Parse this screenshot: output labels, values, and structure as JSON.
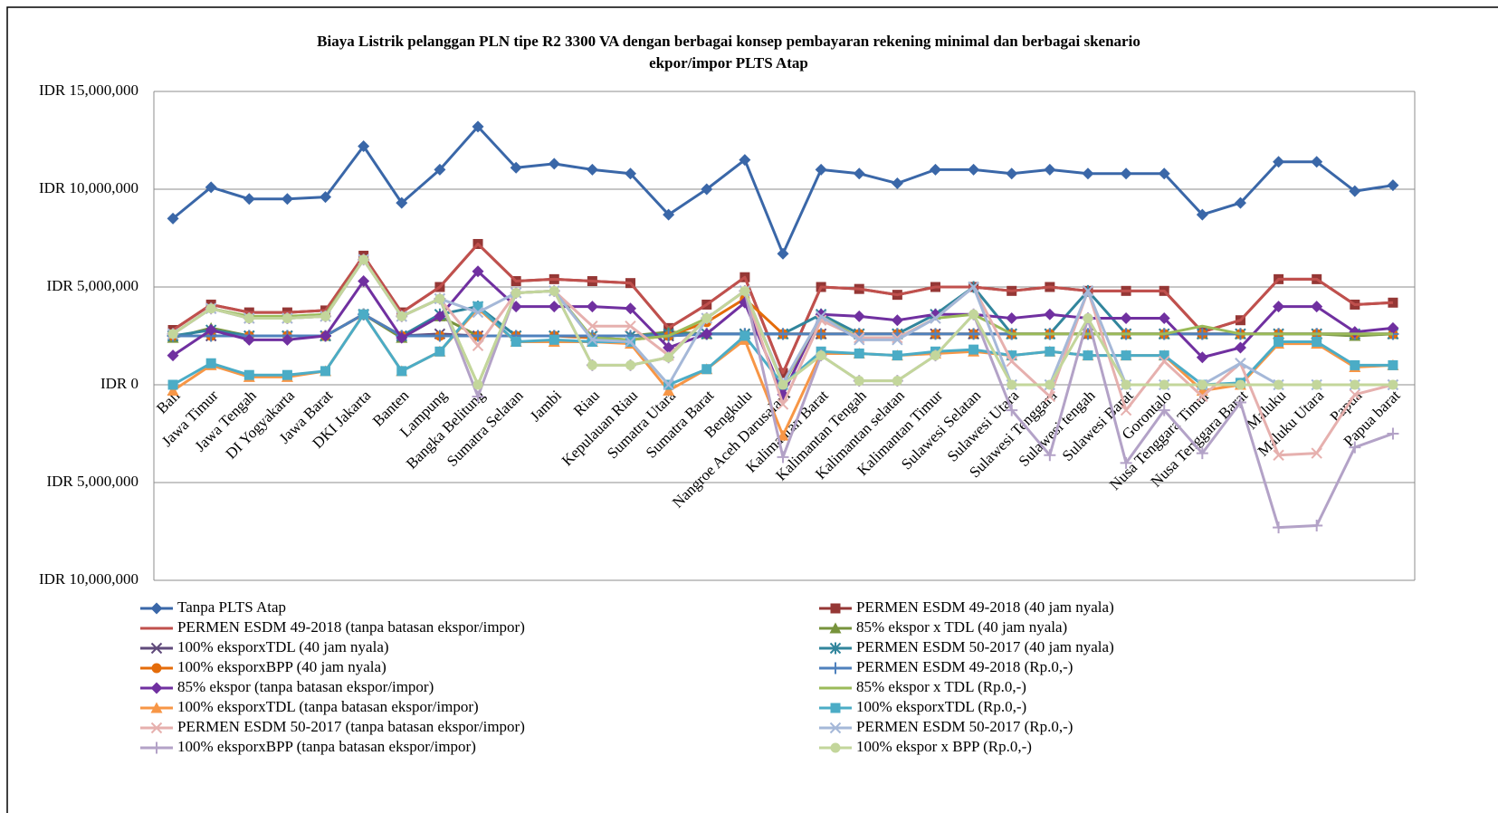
{
  "chart_data": {
    "type": "line",
    "title": "Biaya Listrik pelanggan PLN  tipe R2 3300 VA dengan berbagai  konsep pembayaran  rekening minimal  dan berbagai  skenario",
    "subtitle": "ekpor/impor  PLTS Atap",
    "categories": [
      "Bali",
      "Jawa Timur",
      "Jawa Tengah",
      "DI Yogyakarta",
      "Jawa Barat",
      "DKI Jakarta",
      "Banten",
      "Lampung",
      "Bangka Belitung",
      "Sumatra Selatan",
      "Jambi",
      "Riau",
      "Kepulauan Riau",
      "Sumatra Utara",
      "Sumatra Barat",
      "Bengkulu",
      "Nangroe Aceh Darusalam",
      "Kalimantan Barat",
      "Kalimantan Tengah",
      "Kalimantan selatan",
      "Kalimantan Timur",
      "Sulawesi Selatan",
      "Sulawesi Utara",
      "Sulawesi Tenggara",
      "Sulawesi tengah",
      "Sulawesi Barat",
      "Gorontalo",
      "Nusa Tenggara Timur",
      "Nusa Tenggara Barat",
      "Maluku",
      "Maluku Utara",
      "Papua",
      "Papua barat"
    ],
    "ylim": [
      -10000000,
      15000000
    ],
    "yticks": [
      {
        "value": -10000000,
        "label": "IDR 10,000,000"
      },
      {
        "value": -5000000,
        "label": "IDR 5,000,000"
      },
      {
        "value": 0,
        "label": "IDR 0"
      },
      {
        "value": 5000000,
        "label": "IDR 5,000,000"
      },
      {
        "value": 10000000,
        "label": "IDR 10,000,000"
      },
      {
        "value": 15000000,
        "label": "IDR 15,000,000"
      }
    ],
    "negative_tick_color": "#ff0000",
    "grid": true,
    "legend": "bottom",
    "series": [
      {
        "name": "Tanpa PLTS Atap",
        "color": "#3a67a8",
        "marker": "diamond",
        "values": [
          8500000,
          10100000,
          9500000,
          9500000,
          9600000,
          12200000,
          9300000,
          11000000,
          13200000,
          11100000,
          11300000,
          11000000,
          10800000,
          8700000,
          10000000,
          11500000,
          6700000,
          11000000,
          10800000,
          10300000,
          11000000,
          11000000,
          10800000,
          11000000,
          10800000,
          10800000,
          10800000,
          8700000,
          9300000,
          11400000,
          11400000,
          9900000,
          10200000
        ]
      },
      {
        "name": "PERMEN ESDM 49-2018 (40 jam nyala)",
        "color": "#953735",
        "marker": "square",
        "values": [
          2800000,
          4100000,
          3700000,
          3700000,
          3800000,
          6600000,
          3700000,
          5000000,
          7200000,
          5300000,
          5400000,
          5300000,
          5200000,
          2900000,
          4100000,
          5500000,
          600000,
          5000000,
          4900000,
          4600000,
          5000000,
          5000000,
          4800000,
          5000000,
          4800000,
          4800000,
          4800000,
          2700000,
          3300000,
          5400000,
          5400000,
          4100000,
          4200000
        ]
      },
      {
        "name": "PERMEN ESDM 49-2018 (tanpa batasan ekspor/impor)",
        "color": "#c0504d",
        "marker": "none",
        "values": [
          2800000,
          4100000,
          3700000,
          3700000,
          3800000,
          6600000,
          3700000,
          5000000,
          7200000,
          5300000,
          5400000,
          5300000,
          5200000,
          2900000,
          4100000,
          5500000,
          600000,
          5000000,
          4900000,
          4600000,
          5000000,
          5000000,
          4800000,
          5000000,
          4800000,
          4800000,
          4800000,
          2700000,
          3300000,
          5400000,
          5400000,
          4100000,
          4200000
        ]
      },
      {
        "name": "85% ekspor x TDL (40 jam nyala)",
        "color": "#77933c",
        "marker": "triangle",
        "values": [
          2400000,
          2900000,
          2500000,
          2500000,
          2500000,
          3600000,
          2400000,
          3500000,
          2500000,
          2500000,
          2500000,
          2500000,
          2500000,
          2700000,
          2600000,
          2600000,
          2600000,
          2600000,
          2600000,
          2600000,
          2600000,
          2600000,
          2600000,
          2600000,
          2600000,
          2600000,
          2600000,
          2600000,
          2600000,
          2600000,
          2600000,
          2500000,
          2600000
        ]
      },
      {
        "name": "100% eksporxTDL (40 jam nyala)",
        "color": "#604a7b",
        "marker": "x",
        "values": [
          2500000,
          2500000,
          2500000,
          2500000,
          2500000,
          3600000,
          2500000,
          2600000,
          2500000,
          2500000,
          2500000,
          2500000,
          2500000,
          2500000,
          2600000,
          2600000,
          2600000,
          2600000,
          2600000,
          2600000,
          2600000,
          2600000,
          2600000,
          2600000,
          2600000,
          2600000,
          2600000,
          2600000,
          2600000,
          2600000,
          2600000,
          2600000,
          2600000
        ]
      },
      {
        "name": "PERMEN ESDM 50-2017 (40 jam nyala)",
        "color": "#31859c",
        "marker": "star",
        "values": [
          2500000,
          2800000,
          2500000,
          2500000,
          2500000,
          3600000,
          2500000,
          3600000,
          4000000,
          2500000,
          2500000,
          2500000,
          2500000,
          2600000,
          2600000,
          2600000,
          2600000,
          3600000,
          2600000,
          2600000,
          3600000,
          5000000,
          2600000,
          2600000,
          4800000,
          2600000,
          2600000,
          2600000,
          2600000,
          2600000,
          2600000,
          2600000,
          2600000
        ]
      },
      {
        "name": "100% eksporxBPP (40 jam nyala)",
        "color": "#e46c0a",
        "marker": "circle",
        "values": [
          2500000,
          2500000,
          2500000,
          2500000,
          2500000,
          3600000,
          2500000,
          2500000,
          2500000,
          2500000,
          2500000,
          2400000,
          2300000,
          2500000,
          3200000,
          4400000,
          2600000,
          2600000,
          2600000,
          2600000,
          2600000,
          2600000,
          2600000,
          2600000,
          2600000,
          2600000,
          2600000,
          2600000,
          2600000,
          2600000,
          2600000,
          2600000,
          2600000
        ]
      },
      {
        "name": "PERMEN ESDM 49-2018 (Rp.0,-)",
        "color": "#4f81bd",
        "marker": "plus",
        "values": [
          2500000,
          2500000,
          2500000,
          2500000,
          2500000,
          3600000,
          2500000,
          2500000,
          2500000,
          2500000,
          2500000,
          2500000,
          2500000,
          2500000,
          2600000,
          2600000,
          2600000,
          2600000,
          2600000,
          2600000,
          2600000,
          2600000,
          2600000,
          2600000,
          2600000,
          2600000,
          2600000,
          2600000,
          2600000,
          2600000,
          2600000,
          2600000,
          2600000
        ]
      },
      {
        "name": "85% ekspor (tanpa batasan ekspor/impor)",
        "color": "#7030a0",
        "marker": "diamond",
        "values": [
          1500000,
          2800000,
          2300000,
          2300000,
          2500000,
          5300000,
          2400000,
          3500000,
          5800000,
          4000000,
          4000000,
          4000000,
          3900000,
          1900000,
          2600000,
          4200000,
          -500000,
          3600000,
          3500000,
          3300000,
          3600000,
          3600000,
          3400000,
          3600000,
          3400000,
          3400000,
          3400000,
          1400000,
          1900000,
          4000000,
          4000000,
          2700000,
          2900000
        ]
      },
      {
        "name": "85% ekspor x TDL (Rp.0,-)",
        "color": "#9bbb59",
        "marker": "none",
        "values": [
          2600000,
          3900000,
          3500000,
          3500000,
          3600000,
          6400000,
          3500000,
          4400000,
          0,
          4700000,
          4800000,
          2400000,
          2300000,
          2500000,
          3400000,
          4800000,
          0,
          3500000,
          2400000,
          2400000,
          3400000,
          3600000,
          2600000,
          2600000,
          2600000,
          2600000,
          2600000,
          3000000,
          2600000,
          2600000,
          2600000,
          2600000,
          2600000
        ]
      },
      {
        "name": "100% eksporxTDL (tanpa batasan ekspor/impor)",
        "color": "#f79646",
        "marker": "triangle",
        "values": [
          -300000,
          1000000,
          400000,
          400000,
          700000,
          3600000,
          700000,
          1700000,
          3900000,
          2200000,
          2200000,
          2200000,
          2100000,
          -300000,
          800000,
          2300000,
          -2600000,
          1600000,
          1600000,
          1500000,
          1600000,
          1700000,
          1500000,
          1700000,
          1500000,
          1500000,
          1500000,
          -300000,
          0,
          2100000,
          2100000,
          900000,
          1000000
        ]
      },
      {
        "name": "100% eksporxTDL (Rp.0,-)",
        "color": "#4bacc6",
        "marker": "square",
        "values": [
          0,
          1100000,
          500000,
          500000,
          700000,
          3600000,
          700000,
          1700000,
          4000000,
          2200000,
          2300000,
          2200000,
          2200000,
          0,
          800000,
          2500000,
          0,
          1700000,
          1600000,
          1500000,
          1700000,
          1800000,
          1500000,
          1700000,
          1500000,
          1500000,
          1500000,
          0,
          100000,
          2200000,
          2200000,
          1000000,
          1000000
        ]
      },
      {
        "name": "PERMEN ESDM 50-2017 (tanpa batasan ekspor/impor)",
        "color": "#e6b0ae",
        "marker": "x",
        "values": [
          2600000,
          3900000,
          3400000,
          3400000,
          3500000,
          6400000,
          3500000,
          4400000,
          2000000,
          4700000,
          4800000,
          3000000,
          3000000,
          1500000,
          3400000,
          4800000,
          -1000000,
          3300000,
          2400000,
          2400000,
          3400000,
          5000000,
          1200000,
          -600000,
          4800000,
          -1300000,
          1200000,
          -600000,
          1100000,
          -3600000,
          -3500000,
          -500000,
          0
        ]
      },
      {
        "name": "PERMEN ESDM 50-2017 (Rp.0,-)",
        "color": "#a5b8d8",
        "marker": "x",
        "values": [
          2600000,
          3900000,
          3400000,
          3400000,
          3500000,
          6400000,
          3500000,
          4400000,
          3700000,
          4700000,
          4800000,
          2300000,
          2200000,
          0,
          3400000,
          4800000,
          100000,
          3500000,
          2300000,
          2300000,
          3400000,
          5000000,
          0,
          0,
          4800000,
          0,
          0,
          0,
          1100000,
          0,
          0,
          0,
          0
        ]
      },
      {
        "name": "100% eksporxBPP (tanpa batasan ekspor/impor)",
        "color": "#b3a2c7",
        "marker": "plus",
        "values": [
          2600000,
          3900000,
          3400000,
          3400000,
          3500000,
          6400000,
          3500000,
          4400000,
          -600000,
          4700000,
          4800000,
          1000000,
          1000000,
          1400000,
          3400000,
          4800000,
          -3700000,
          1500000,
          200000,
          200000,
          1500000,
          3600000,
          -1300000,
          -3600000,
          3400000,
          -4000000,
          -1300000,
          -3500000,
          -900000,
          -7300000,
          -7200000,
          -3200000,
          -2500000
        ]
      },
      {
        "name": "100% ekspor x BPP (Rp.0,-)",
        "color": "#c3d69b",
        "marker": "circle",
        "values": [
          2600000,
          3900000,
          3400000,
          3400000,
          3500000,
          6400000,
          3500000,
          4400000,
          0,
          4700000,
          4800000,
          1000000,
          1000000,
          1400000,
          3400000,
          4800000,
          0,
          1500000,
          200000,
          200000,
          1500000,
          3600000,
          0,
          0,
          3400000,
          0,
          0,
          0,
          0,
          0,
          0,
          0,
          0
        ]
      }
    ]
  }
}
